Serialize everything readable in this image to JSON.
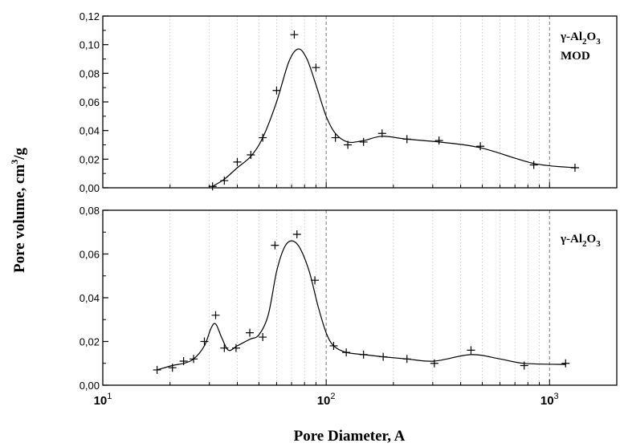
{
  "chart_data": {
    "type": "scatter",
    "xlabel": "Pore Diameter, A",
    "ylabel": "Pore volume, cm³/g",
    "xscale": "log",
    "xlim": [
      10,
      2000
    ],
    "x_ticks": [
      {
        "value": 10,
        "base": "10",
        "exp": "1"
      },
      {
        "value": 100,
        "base": "10",
        "exp": "2"
      },
      {
        "value": 1000,
        "base": "10",
        "exp": "3"
      }
    ],
    "grid": "vertical dotted minor, dashed at decades",
    "panels": [
      {
        "id": "top",
        "label": "γ-Al₂O₃ MOD",
        "label_parts": {
          "prefix": "γ-Al",
          "sub1": "2",
          "mid": "O",
          "sub2": "3",
          "line2": "MOD"
        },
        "ylim": [
          0,
          0.12
        ],
        "y_ticks": [
          "0,00",
          "0,02",
          "0,04",
          "0,06",
          "0,08",
          "0,10",
          "0,12"
        ],
        "points": [
          [
            31,
            0.001
          ],
          [
            35,
            0.005
          ],
          [
            40,
            0.018
          ],
          [
            46,
            0.023
          ],
          [
            52,
            0.035
          ],
          [
            60,
            0.068
          ],
          [
            72,
            0.107
          ],
          [
            90,
            0.084
          ],
          [
            110,
            0.035
          ],
          [
            125,
            0.03
          ],
          [
            147,
            0.032
          ],
          [
            178,
            0.038
          ],
          [
            230,
            0.034
          ],
          [
            320,
            0.033
          ],
          [
            490,
            0.029
          ],
          [
            850,
            0.016
          ],
          [
            1300,
            0.014
          ]
        ],
        "curve": [
          [
            31,
            0.001
          ],
          [
            35,
            0.006
          ],
          [
            40,
            0.014
          ],
          [
            46,
            0.022
          ],
          [
            52,
            0.035
          ],
          [
            60,
            0.06
          ],
          [
            68,
            0.088
          ],
          [
            75,
            0.097
          ],
          [
            82,
            0.09
          ],
          [
            90,
            0.072
          ],
          [
            100,
            0.05
          ],
          [
            110,
            0.038
          ],
          [
            125,
            0.032
          ],
          [
            147,
            0.033
          ],
          [
            178,
            0.036
          ],
          [
            230,
            0.034
          ],
          [
            320,
            0.032
          ],
          [
            490,
            0.028
          ],
          [
            850,
            0.017
          ],
          [
            1300,
            0.014
          ]
        ]
      },
      {
        "id": "bottom",
        "label": "γ-Al₂O₃",
        "label_parts": {
          "prefix": "γ-Al",
          "sub1": "2",
          "mid": "O",
          "sub2": "3",
          "line2": ""
        },
        "ylim": [
          0,
          0.08
        ],
        "y_ticks": [
          "0,00",
          "0,02",
          "0,04",
          "0,06",
          "0,08"
        ],
        "points": [
          [
            17.5,
            0.007
          ],
          [
            20.5,
            0.008
          ],
          [
            23,
            0.011
          ],
          [
            25.5,
            0.012
          ],
          [
            28.5,
            0.02
          ],
          [
            32,
            0.032
          ],
          [
            35,
            0.017
          ],
          [
            39.5,
            0.017
          ],
          [
            45.5,
            0.024
          ],
          [
            52,
            0.022
          ],
          [
            59,
            0.064
          ],
          [
            74,
            0.069
          ],
          [
            89,
            0.048
          ],
          [
            108,
            0.018
          ],
          [
            123,
            0.015
          ],
          [
            147,
            0.014
          ],
          [
            180,
            0.013
          ],
          [
            230,
            0.012
          ],
          [
            305,
            0.01
          ],
          [
            445,
            0.016
          ],
          [
            770,
            0.009
          ],
          [
            1180,
            0.01
          ]
        ],
        "curve": [
          [
            17.5,
            0.007
          ],
          [
            20.5,
            0.009
          ],
          [
            23,
            0.01
          ],
          [
            25.5,
            0.012
          ],
          [
            28.5,
            0.018
          ],
          [
            30.5,
            0.026
          ],
          [
            32,
            0.028
          ],
          [
            34,
            0.022
          ],
          [
            36.5,
            0.016
          ],
          [
            40,
            0.018
          ],
          [
            45.5,
            0.021
          ],
          [
            50,
            0.023
          ],
          [
            55,
            0.032
          ],
          [
            60,
            0.052
          ],
          [
            65,
            0.063
          ],
          [
            70,
            0.066
          ],
          [
            76,
            0.063
          ],
          [
            84,
            0.052
          ],
          [
            92,
            0.036
          ],
          [
            100,
            0.024
          ],
          [
            108,
            0.018
          ],
          [
            123,
            0.015
          ],
          [
            147,
            0.014
          ],
          [
            180,
            0.013
          ],
          [
            230,
            0.012
          ],
          [
            305,
            0.011
          ],
          [
            445,
            0.014
          ],
          [
            600,
            0.012
          ],
          [
            770,
            0.01
          ],
          [
            1180,
            0.0095
          ]
        ]
      }
    ]
  }
}
